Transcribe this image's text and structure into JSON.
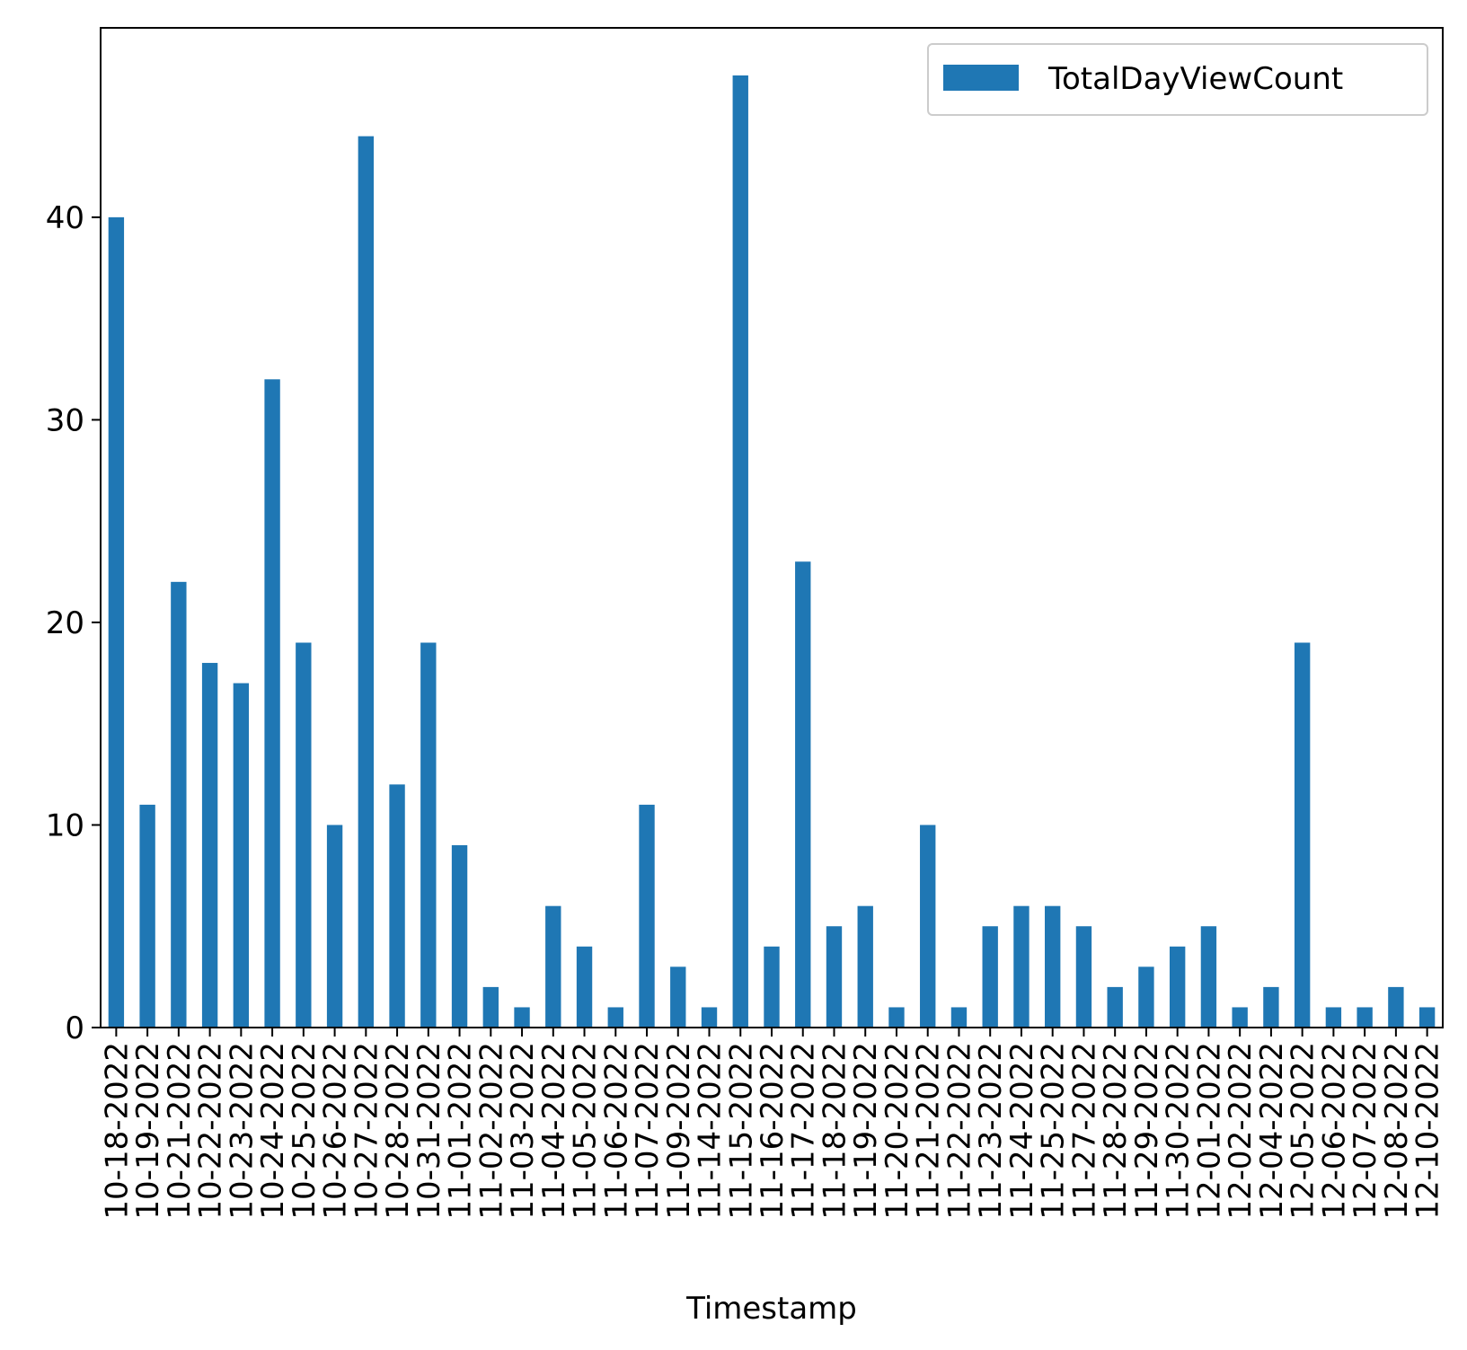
{
  "chart_data": {
    "type": "bar",
    "categories": [
      "10-18-2022",
      "10-19-2022",
      "10-21-2022",
      "10-22-2022",
      "10-23-2022",
      "10-24-2022",
      "10-25-2022",
      "10-26-2022",
      "10-27-2022",
      "10-28-2022",
      "10-31-2022",
      "11-01-2022",
      "11-02-2022",
      "11-03-2022",
      "11-04-2022",
      "11-05-2022",
      "11-06-2022",
      "11-07-2022",
      "11-09-2022",
      "11-14-2022",
      "11-15-2022",
      "11-16-2022",
      "11-17-2022",
      "11-18-2022",
      "11-19-2022",
      "11-20-2022",
      "11-21-2022",
      "11-22-2022",
      "11-23-2022",
      "11-24-2022",
      "11-25-2022",
      "11-27-2022",
      "11-28-2022",
      "11-29-2022",
      "11-30-2022",
      "12-01-2022",
      "12-02-2022",
      "12-04-2022",
      "12-05-2022",
      "12-06-2022",
      "12-07-2022",
      "12-08-2022",
      "12-10-2022"
    ],
    "series": [
      {
        "name": "TotalDayViewCount",
        "values": [
          40,
          11,
          22,
          18,
          17,
          32,
          19,
          10,
          44,
          12,
          19,
          9,
          2,
          1,
          6,
          4,
          1,
          11,
          3,
          1,
          47,
          4,
          23,
          5,
          6,
          1,
          10,
          1,
          5,
          6,
          6,
          5,
          2,
          3,
          4,
          5,
          1,
          2,
          19,
          1,
          1,
          2,
          1
        ]
      }
    ],
    "xlabel": "Timestamp",
    "ylabel": "",
    "ylim": [
      0,
      49.35
    ],
    "yticks": [
      0,
      10,
      20,
      30,
      40
    ],
    "legend_position": "top-right",
    "grid": false,
    "bar_color": "#1f77b4"
  }
}
